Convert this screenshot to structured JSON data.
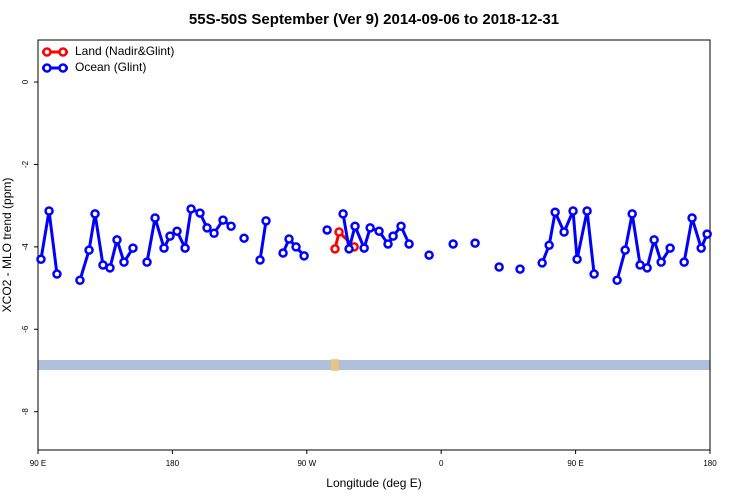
{
  "chart_data": {
    "type": "line",
    "title": "55S-50S September (Ver 9)   2014-09-06 to 2018-12-31",
    "x_label": "Longitude (deg E)",
    "y_label": "XCO2 - MLO trend (ppm)",
    "xlim": [
      90,
      540
    ],
    "ylim": [
      -8.93,
      1.02
    ],
    "xticks": [
      {
        "value": 90,
        "label": "90 E"
      },
      {
        "value": 180,
        "label": "180"
      },
      {
        "value": 270,
        "label": "90 W"
      },
      {
        "value": 360,
        "label": "0"
      },
      {
        "value": 450,
        "label": "90 E"
      },
      {
        "value": 540,
        "label": "180"
      }
    ],
    "yticks": [
      0,
      -2,
      -4,
      -6,
      -8
    ],
    "legend": "top-left",
    "series": [
      {
        "name": "Land (Nadir&Glint)",
        "color": "#ff0000",
        "x": [
          288.9,
          291.6,
          301.7
        ],
        "values": [
          -4.05,
          -3.64,
          -4.0
        ]
      },
      {
        "name": "Ocean (Glint)",
        "color": "#0000ff",
        "x": [
          92.0,
          97.4,
          102.7,
          null,
          118.1,
          124.2,
          128.2,
          133.5,
          138.2,
          142.9,
          147.6,
          153.6,
          null,
          163.0,
          168.4,
          174.4,
          178.4,
          183.1,
          188.5,
          192.5,
          198.5,
          203.2,
          207.9,
          213.9,
          219.3,
          null,
          228.0,
          null,
          238.7,
          242.7,
          null,
          254.1,
          258.1,
          262.8,
          268.2,
          null,
          283.6,
          null,
          294.3,
          298.3,
          302.3,
          308.4,
          312.4,
          318.4,
          324.4,
          327.8,
          333.1,
          338.5,
          null,
          351.9,
          null,
          368.0,
          null,
          382.7,
          null,
          398.8,
          null,
          412.8,
          null,
          427.6,
          432.3,
          436.3,
          442.3,
          448.3,
          451.0,
          457.7,
          462.4,
          null,
          477.8,
          483.2,
          487.9,
          493.2,
          497.9,
          502.6,
          507.3,
          513.3,
          null,
          522.7,
          528.0,
          534.1,
          538.1
        ],
        "values": [
          -4.3,
          -3.13,
          -4.66,
          null,
          -4.81,
          -4.08,
          -3.2,
          -4.44,
          -4.51,
          -3.83,
          -4.37,
          -4.03,
          null,
          -4.37,
          -3.3,
          -4.03,
          -3.74,
          -3.62,
          -4.03,
          -3.08,
          -3.18,
          -3.54,
          -3.67,
          -3.35,
          -3.5,
          null,
          -3.79,
          null,
          -4.32,
          -3.37,
          null,
          -4.15,
          -3.81,
          -4.0,
          -4.22,
          null,
          -3.59,
          null,
          -3.2,
          -4.05,
          -3.5,
          -4.03,
          -3.54,
          -3.62,
          -3.93,
          -3.74,
          -3.5,
          -3.93,
          null,
          -4.2,
          null,
          -3.93,
          null,
          -3.91,
          null,
          -4.49,
          null,
          -4.54,
          null,
          -4.39,
          -3.96,
          -3.16,
          -3.64,
          -3.13,
          -4.3,
          -3.13,
          -4.66,
          null,
          -4.81,
          -4.08,
          -3.2,
          -4.44,
          -4.51,
          -3.83,
          -4.37,
          -4.03,
          null,
          -4.37,
          -3.3,
          -4.03,
          -3.69
        ]
      }
    ]
  }
}
